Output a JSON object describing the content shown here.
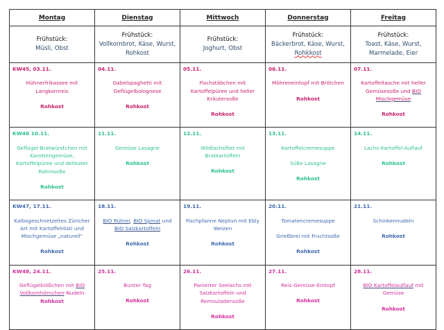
{
  "days": [
    "Montag",
    "Dienstag",
    "Mittwoch",
    "Donnerstag",
    "Freitag"
  ],
  "breakfast_label": "Frühstück:",
  "breakfast": [
    "Müsli, Obst",
    "Vollkornbrot, Käse, Wurst, Rohkost",
    "Joghurt, Obst",
    "Bäckerbrot, Käse, Wurst, Rohkkost",
    "Toast, Käse, Wurst, Marmelade, Eier"
  ],
  "colors": {
    "week45": "#c8206e",
    "week46": "#2cc08a",
    "week47": "#3c68ad",
    "week48": "#d22f9c",
    "text": "#222222",
    "breakfast": "#2f4a6b"
  },
  "weeks": [
    {
      "color_key": "week45",
      "row_height": 91,
      "cells": [
        {
          "date": "KW45, 03.11.",
          "paras": [
            [
              {
                "t": "Hühnerfrikassee mit Langkornreis"
              }
            ],
            [
              {
                "t": "Rohkost",
                "b": true
              }
            ]
          ]
        },
        {
          "date": "04.11.",
          "paras": [
            [
              {
                "t": "Gabelspaghetti mit Geflügelbolognese"
              }
            ],
            [
              {
                "t": "Rohkost",
                "b": true
              }
            ]
          ]
        },
        {
          "date": "05.11.",
          "paras": [
            [
              {
                "t": "Fischstäbchen mit Kartoffelpüree und heller Kräutersoße"
              }
            ],
            [
              {
                "t": "Rohkost",
                "b": true
              }
            ]
          ]
        },
        {
          "date": "06.11.",
          "paras": [
            [
              {
                "t": "Möhreneintopf mit Brötchen"
              }
            ],
            [
              {
                "t": "Rohkost",
                "b": true
              }
            ]
          ]
        },
        {
          "date": "07.11.",
          "paras": [
            [
              {
                "t": "Kartoffeltasche mit heller Gemüsesoße und "
              },
              {
                "t": "BIO Mischgemüse",
                "u": true
              }
            ],
            [
              {
                "t": "Rohkost",
                "b": true
              }
            ]
          ]
        }
      ]
    },
    {
      "color_key": "week46",
      "row_height": 91,
      "cells": [
        {
          "date": "KW46 10.11.",
          "paras": [
            [
              {
                "t": "Geflügel-Bratwürstchen mit Karottengemüse, Kartoffelpüree und delikater Rahmsoße"
              }
            ],
            [
              {
                "t": "Rohkost",
                "b": true
              }
            ]
          ]
        },
        {
          "date": "11.11.",
          "paras": [
            [
              {
                "t": "Gemüse Lasagne"
              }
            ],
            [
              {
                "t": "Rohkost",
                "b": true
              }
            ]
          ]
        },
        {
          "date": "12.11.",
          "paras": [
            [
              {
                "t": "Wildlachsfilet mit Bratkartoffeln"
              }
            ],
            [
              {
                "t": "Rohkost",
                "b": true
              }
            ]
          ]
        },
        {
          "date": "13.11.",
          "paras": [
            [
              {
                "t": "Kartoffelcremesuppe"
              }
            ],
            [
              {
                "t": "Süße Lasagne"
              }
            ],
            [
              {
                "t": "Rohkost",
                "b": true
              }
            ]
          ]
        },
        {
          "date": "14.11.",
          "paras": [
            [
              {
                "t": "Lachs-Kartoffel-Auflauf"
              }
            ],
            [
              {
                "t": "Rohkost",
                "b": true
              }
            ]
          ]
        }
      ]
    },
    {
      "color_key": "week47",
      "row_height": 91,
      "cells": [
        {
          "date": "KW47, 17.11.",
          "paras": [
            [
              {
                "t": "Kalbsgeschnetzeltes Züricher Art mit Kartoffelrösti und Mischgemüse „naturell“"
              }
            ],
            [
              {
                "t": "Rohkost",
                "b": true
              }
            ]
          ]
        },
        {
          "date": "18.11.",
          "paras": [
            [
              {
                "t": "BIO Rührei",
                "u": true
              },
              {
                "t": ", "
              },
              {
                "t": "BIO Spinat",
                "u": true
              },
              {
                "t": " und "
              },
              {
                "t": "BIO Salzkartoffeln",
                "u": true
              }
            ],
            [
              {
                "t": "Rohkost",
                "b": true
              }
            ]
          ]
        },
        {
          "date": "19.11.",
          "paras": [
            [
              {
                "t": "Fischpfanne Neptun mit Ebly Weizen"
              }
            ],
            [
              {
                "t": "Rohkost",
                "b": true
              }
            ]
          ]
        },
        {
          "date": "20.11.",
          "paras": [
            [
              {
                "t": "Tomatencremesuppe"
              }
            ],
            [
              {
                "t": "Grießbrei mit Fruchtsoße"
              }
            ],
            [
              {
                "t": "Rohkost",
                "b": true
              }
            ]
          ]
        },
        {
          "date": "21.11.",
          "paras": [
            [
              {
                "t": "Schinkennudeln"
              }
            ],
            [
              {
                "t": "Rohkost",
                "b": true
              }
            ]
          ]
        }
      ]
    },
    {
      "color_key": "week48",
      "row_height": 84,
      "cells": [
        {
          "date": "KW48, 24.11.",
          "tight": true,
          "paras": [
            [
              {
                "t": "Geflügelklößchen mit "
              },
              {
                "t": "BIO Vollkornhörnchen",
                "u": true
              },
              {
                "t": "-Nudeln"
              }
            ],
            [
              {
                "t": "Rohkost",
                "b": true
              }
            ]
          ]
        },
        {
          "date": "25.11.",
          "paras": [
            [
              {
                "t": "Bunter Tag"
              }
            ],
            [
              {
                "t": "Rohkost",
                "b": true
              }
            ]
          ]
        },
        {
          "date": "26.11.",
          "paras": [
            [
              {
                "t": "Panierter Seelachs mit Salzkartoffeln und Remouladensoße"
              }
            ],
            [
              {
                "t": "Rohkost",
                "b": true
              }
            ]
          ]
        },
        {
          "date": "27.11.",
          "paras": [
            [
              {
                "t": "Reis-Gemüse-Eintopf"
              }
            ],
            [
              {
                "t": "Rohkost",
                "b": true
              }
            ]
          ]
        },
        {
          "date": "28.11.",
          "paras": [
            [
              {
                "t": "BIO Kartoffelauflauf",
                "u": true
              },
              {
                "t": " mit Gemüse"
              }
            ],
            [
              {
                "t": "Rohkost",
                "b": true
              }
            ]
          ]
        }
      ]
    }
  ]
}
